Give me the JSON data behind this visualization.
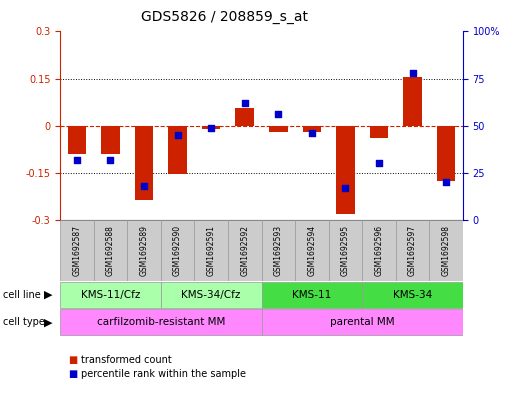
{
  "title": "GDS5826 / 208859_s_at",
  "samples": [
    "GSM1692587",
    "GSM1692588",
    "GSM1692589",
    "GSM1692590",
    "GSM1692591",
    "GSM1692592",
    "GSM1692593",
    "GSM1692594",
    "GSM1692595",
    "GSM1692596",
    "GSM1692597",
    "GSM1692598"
  ],
  "transformed_count": [
    -0.09,
    -0.09,
    -0.235,
    -0.155,
    -0.01,
    0.055,
    -0.02,
    -0.02,
    -0.28,
    -0.04,
    0.155,
    -0.175
  ],
  "percentile_rank": [
    32,
    32,
    18,
    45,
    49,
    62,
    56,
    46,
    17,
    30,
    78,
    20
  ],
  "cell_line_groups": [
    {
      "label": "KMS-11/Cfz",
      "start": 0,
      "end": 2,
      "color": "#AAFFAA"
    },
    {
      "label": "KMS-34/Cfz",
      "start": 3,
      "end": 5,
      "color": "#AAFFAA"
    },
    {
      "label": "KMS-11",
      "start": 6,
      "end": 8,
      "color": "#44DD44"
    },
    {
      "label": "KMS-34",
      "start": 9,
      "end": 11,
      "color": "#44DD44"
    }
  ],
  "cell_type_groups": [
    {
      "label": "carfilzomib-resistant MM",
      "start": 0,
      "end": 5,
      "color": "#FF88FF"
    },
    {
      "label": "parental MM",
      "start": 6,
      "end": 11,
      "color": "#FF88FF"
    }
  ],
  "bar_color": "#CC2200",
  "dot_color": "#0000CC",
  "ylim_left": [
    -0.3,
    0.3
  ],
  "ylim_right": [
    0,
    100
  ],
  "yticks_left": [
    -0.3,
    -0.15,
    0,
    0.15,
    0.3
  ],
  "yticks_right": [
    0,
    25,
    50,
    75,
    100
  ],
  "ytick_labels_right": [
    "0",
    "25",
    "50",
    "75",
    "100%"
  ],
  "background_color": "#ffffff",
  "bar_width": 0.55,
  "title_fontsize": 10,
  "tick_fontsize": 7,
  "sample_label_fontsize": 5.5,
  "legend_items": [
    {
      "label": "transformed count",
      "color": "#CC2200"
    },
    {
      "label": "percentile rank within the sample",
      "color": "#0000CC"
    }
  ]
}
